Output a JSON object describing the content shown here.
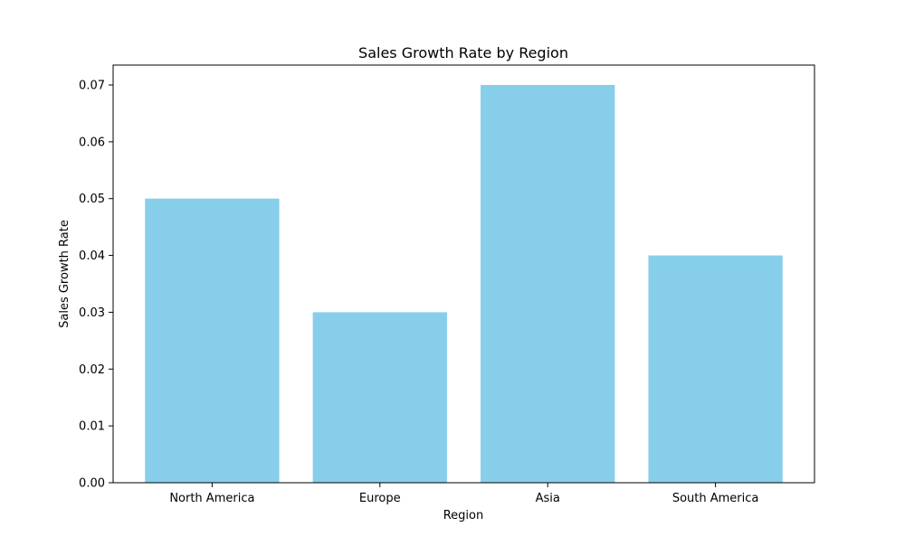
{
  "chart_data": {
    "type": "bar",
    "title": "Sales Growth Rate by Region",
    "xlabel": "Region",
    "ylabel": "Sales Growth Rate",
    "categories": [
      "North America",
      "Europe",
      "Asia",
      "South America"
    ],
    "values": [
      0.05,
      0.03,
      0.07,
      0.04
    ],
    "ylim": [
      0,
      0.0735
    ],
    "yticks": [
      "0.00",
      "0.01",
      "0.02",
      "0.03",
      "0.04",
      "0.05",
      "0.06",
      "0.07"
    ],
    "grid": false,
    "legend": "none",
    "bar_color": "#87ceeb"
  }
}
